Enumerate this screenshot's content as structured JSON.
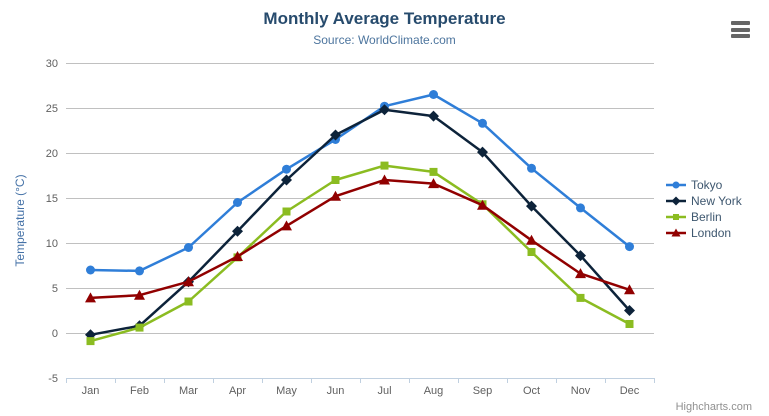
{
  "chart_data": {
    "type": "line",
    "title": "Monthly Average Temperature",
    "subtitle": "Source: WorldClimate.com",
    "categories": [
      "Jan",
      "Feb",
      "Mar",
      "Apr",
      "May",
      "Jun",
      "Jul",
      "Aug",
      "Sep",
      "Oct",
      "Nov",
      "Dec"
    ],
    "xlabel": "",
    "ylabel": "Temperature (°C)",
    "ylim": [
      -5,
      30
    ],
    "ytick_interval": 5,
    "yticks": [
      -5,
      0,
      5,
      10,
      15,
      20,
      25,
      30
    ],
    "grid": true,
    "legend_position": "right",
    "series": [
      {
        "name": "Tokyo",
        "color": "#2f7ed8",
        "marker": "circle",
        "values": [
          7.0,
          6.9,
          9.5,
          14.5,
          18.2,
          21.5,
          25.2,
          26.5,
          23.3,
          18.3,
          13.9,
          9.6
        ]
      },
      {
        "name": "New York",
        "color": "#0d233a",
        "marker": "diamond",
        "values": [
          -0.2,
          0.8,
          5.7,
          11.3,
          17.0,
          22.0,
          24.8,
          24.1,
          20.1,
          14.1,
          8.6,
          2.5
        ]
      },
      {
        "name": "Berlin",
        "color": "#8bbc21",
        "marker": "square",
        "values": [
          -0.9,
          0.6,
          3.5,
          8.4,
          13.5,
          17.0,
          18.6,
          17.9,
          14.3,
          9.0,
          3.9,
          1.0
        ]
      },
      {
        "name": "London",
        "color": "#910000",
        "marker": "triangle",
        "values": [
          3.9,
          4.2,
          5.7,
          8.5,
          11.9,
          15.2,
          17.0,
          16.6,
          14.2,
          10.3,
          6.6,
          4.8
        ]
      }
    ]
  },
  "styles": {
    "title_color": "#274b6d",
    "subtitle_color": "#4d759e",
    "axis_label_color": "#606060",
    "axis_title_color": "#4572a7",
    "grid_color": "#c0c0c0",
    "axis_line_color": "#c0d0e0",
    "legend_text_color": "#3e576f",
    "credit_color": "#909090",
    "menu_icon_color": "#666666",
    "background": "#ffffff"
  },
  "menu": {
    "icon": "hamburger-menu-icon"
  },
  "credit": {
    "label": "Highcharts.com"
  }
}
